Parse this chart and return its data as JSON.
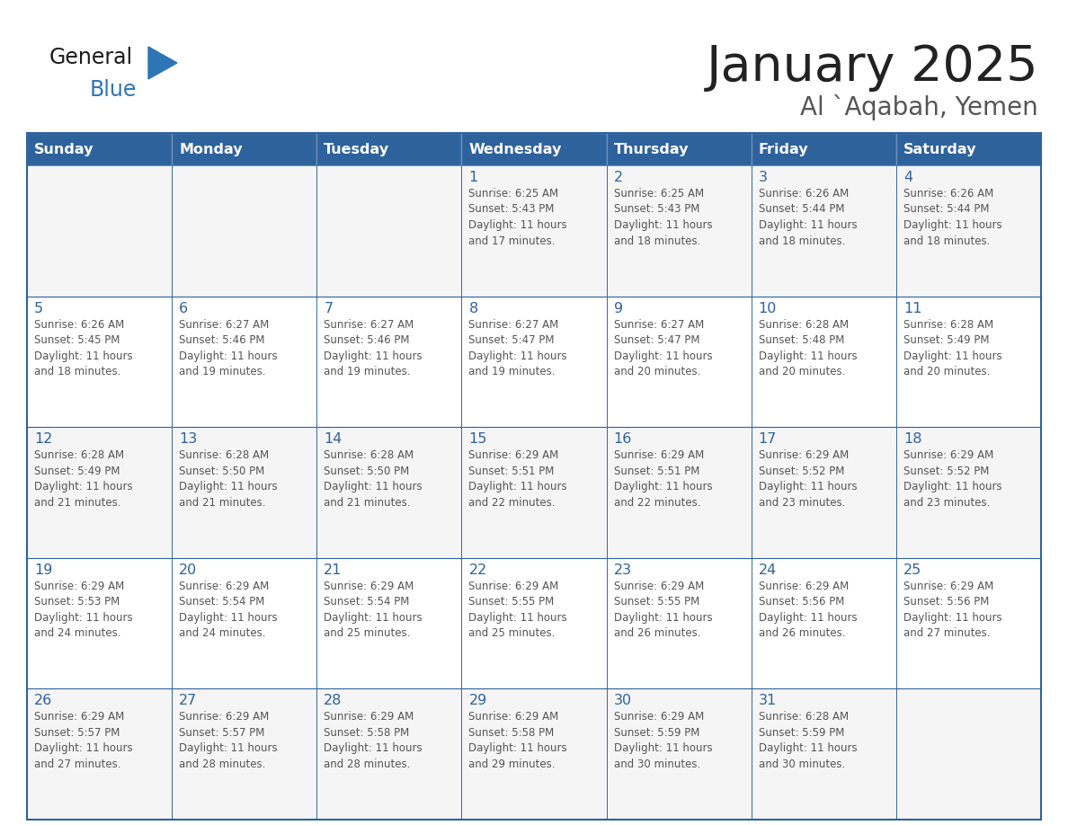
{
  "title": "January 2025",
  "subtitle": "Al `Aqabah, Yemen",
  "days_of_week": [
    "Sunday",
    "Monday",
    "Tuesday",
    "Wednesday",
    "Thursday",
    "Friday",
    "Saturday"
  ],
  "header_bg_color": "#2E629C",
  "header_text_color": "#FFFFFF",
  "cell_bg_color": "#FFFFFF",
  "cell_alt_bg_color": "#F5F5F5",
  "border_color": "#2E629C",
  "day_number_color": "#2E629C",
  "text_color": "#555555",
  "title_color": "#222222",
  "subtitle_color": "#555555",
  "general_text_color": "#222222",
  "blue_logo_color": "#2E75B6",
  "logo_triangle_color": "#2E75B6",
  "weeks": [
    [
      {
        "day": "",
        "info": ""
      },
      {
        "day": "",
        "info": ""
      },
      {
        "day": "",
        "info": ""
      },
      {
        "day": "1",
        "info": "Sunrise: 6:25 AM\nSunset: 5:43 PM\nDaylight: 11 hours\nand 17 minutes."
      },
      {
        "day": "2",
        "info": "Sunrise: 6:25 AM\nSunset: 5:43 PM\nDaylight: 11 hours\nand 18 minutes."
      },
      {
        "day": "3",
        "info": "Sunrise: 6:26 AM\nSunset: 5:44 PM\nDaylight: 11 hours\nand 18 minutes."
      },
      {
        "day": "4",
        "info": "Sunrise: 6:26 AM\nSunset: 5:44 PM\nDaylight: 11 hours\nand 18 minutes."
      }
    ],
    [
      {
        "day": "5",
        "info": "Sunrise: 6:26 AM\nSunset: 5:45 PM\nDaylight: 11 hours\nand 18 minutes."
      },
      {
        "day": "6",
        "info": "Sunrise: 6:27 AM\nSunset: 5:46 PM\nDaylight: 11 hours\nand 19 minutes."
      },
      {
        "day": "7",
        "info": "Sunrise: 6:27 AM\nSunset: 5:46 PM\nDaylight: 11 hours\nand 19 minutes."
      },
      {
        "day": "8",
        "info": "Sunrise: 6:27 AM\nSunset: 5:47 PM\nDaylight: 11 hours\nand 19 minutes."
      },
      {
        "day": "9",
        "info": "Sunrise: 6:27 AM\nSunset: 5:47 PM\nDaylight: 11 hours\nand 20 minutes."
      },
      {
        "day": "10",
        "info": "Sunrise: 6:28 AM\nSunset: 5:48 PM\nDaylight: 11 hours\nand 20 minutes."
      },
      {
        "day": "11",
        "info": "Sunrise: 6:28 AM\nSunset: 5:49 PM\nDaylight: 11 hours\nand 20 minutes."
      }
    ],
    [
      {
        "day": "12",
        "info": "Sunrise: 6:28 AM\nSunset: 5:49 PM\nDaylight: 11 hours\nand 21 minutes."
      },
      {
        "day": "13",
        "info": "Sunrise: 6:28 AM\nSunset: 5:50 PM\nDaylight: 11 hours\nand 21 minutes."
      },
      {
        "day": "14",
        "info": "Sunrise: 6:28 AM\nSunset: 5:50 PM\nDaylight: 11 hours\nand 21 minutes."
      },
      {
        "day": "15",
        "info": "Sunrise: 6:29 AM\nSunset: 5:51 PM\nDaylight: 11 hours\nand 22 minutes."
      },
      {
        "day": "16",
        "info": "Sunrise: 6:29 AM\nSunset: 5:51 PM\nDaylight: 11 hours\nand 22 minutes."
      },
      {
        "day": "17",
        "info": "Sunrise: 6:29 AM\nSunset: 5:52 PM\nDaylight: 11 hours\nand 23 minutes."
      },
      {
        "day": "18",
        "info": "Sunrise: 6:29 AM\nSunset: 5:52 PM\nDaylight: 11 hours\nand 23 minutes."
      }
    ],
    [
      {
        "day": "19",
        "info": "Sunrise: 6:29 AM\nSunset: 5:53 PM\nDaylight: 11 hours\nand 24 minutes."
      },
      {
        "day": "20",
        "info": "Sunrise: 6:29 AM\nSunset: 5:54 PM\nDaylight: 11 hours\nand 24 minutes."
      },
      {
        "day": "21",
        "info": "Sunrise: 6:29 AM\nSunset: 5:54 PM\nDaylight: 11 hours\nand 25 minutes."
      },
      {
        "day": "22",
        "info": "Sunrise: 6:29 AM\nSunset: 5:55 PM\nDaylight: 11 hours\nand 25 minutes."
      },
      {
        "day": "23",
        "info": "Sunrise: 6:29 AM\nSunset: 5:55 PM\nDaylight: 11 hours\nand 26 minutes."
      },
      {
        "day": "24",
        "info": "Sunrise: 6:29 AM\nSunset: 5:56 PM\nDaylight: 11 hours\nand 26 minutes."
      },
      {
        "day": "25",
        "info": "Sunrise: 6:29 AM\nSunset: 5:56 PM\nDaylight: 11 hours\nand 27 minutes."
      }
    ],
    [
      {
        "day": "26",
        "info": "Sunrise: 6:29 AM\nSunset: 5:57 PM\nDaylight: 11 hours\nand 27 minutes."
      },
      {
        "day": "27",
        "info": "Sunrise: 6:29 AM\nSunset: 5:57 PM\nDaylight: 11 hours\nand 28 minutes."
      },
      {
        "day": "28",
        "info": "Sunrise: 6:29 AM\nSunset: 5:58 PM\nDaylight: 11 hours\nand 28 minutes."
      },
      {
        "day": "29",
        "info": "Sunrise: 6:29 AM\nSunset: 5:58 PM\nDaylight: 11 hours\nand 29 minutes."
      },
      {
        "day": "30",
        "info": "Sunrise: 6:29 AM\nSunset: 5:59 PM\nDaylight: 11 hours\nand 30 minutes."
      },
      {
        "day": "31",
        "info": "Sunrise: 6:28 AM\nSunset: 5:59 PM\nDaylight: 11 hours\nand 30 minutes."
      },
      {
        "day": "",
        "info": ""
      }
    ]
  ]
}
